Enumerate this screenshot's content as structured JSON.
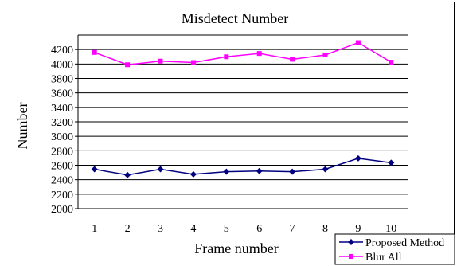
{
  "chart_data": {
    "type": "line",
    "title": "Misdetect Number",
    "xlabel": "Frame number",
    "ylabel": "Number",
    "categories": [
      "1",
      "2",
      "3",
      "4",
      "5",
      "6",
      "7",
      "8",
      "9",
      "10"
    ],
    "ylim": [
      2000,
      4400
    ],
    "yticks": [
      2000,
      2200,
      2400,
      2600,
      2800,
      3000,
      3200,
      3400,
      3600,
      3800,
      4000,
      4200
    ],
    "grid": true,
    "legend": "bottom-right",
    "series": [
      {
        "name": "Proposed Method",
        "color": "#000080",
        "marker": "diamond",
        "values": [
          2545,
          2465,
          2545,
          2475,
          2510,
          2520,
          2510,
          2545,
          2695,
          2635
        ]
      },
      {
        "name": "Blur All",
        "color": "#ff00ff",
        "marker": "square",
        "values": [
          4160,
          3990,
          4040,
          4020,
          4100,
          4145,
          4065,
          4125,
          4295,
          4025
        ]
      }
    ]
  }
}
